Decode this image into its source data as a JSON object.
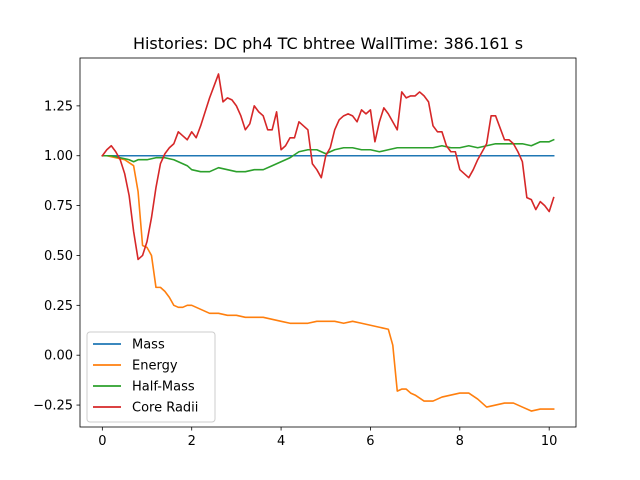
{
  "chart_data": {
    "type": "line",
    "title": "Histories: DC ph4 TC bhtree WallTime: 386.161 s",
    "xlabel": "",
    "ylabel": "",
    "xlim": [
      -0.5,
      10.6
    ],
    "ylim": [
      -0.36,
      1.49
    ],
    "xticks": [
      0,
      2,
      4,
      6,
      8,
      10
    ],
    "xtick_labels": [
      "0",
      "2",
      "4",
      "6",
      "8",
      "10"
    ],
    "yticks": [
      -0.25,
      0.0,
      0.25,
      0.5,
      0.75,
      1.0,
      1.25
    ],
    "ytick_labels": [
      "−0.25",
      "0.00",
      "0.25",
      "0.50",
      "0.75",
      "1.00",
      "1.25"
    ],
    "grid": false,
    "legend_position": "lower-left",
    "series": [
      {
        "name": "Mass",
        "color": "#1f77b4",
        "x": [
          0,
          10.1
        ],
        "y": [
          1.0,
          1.0
        ]
      },
      {
        "name": "Energy",
        "color": "#ff7f0e",
        "x": [
          0,
          0.1,
          0.3,
          0.5,
          0.7,
          0.8,
          0.9,
          1.0,
          1.1,
          1.2,
          1.3,
          1.4,
          1.5,
          1.6,
          1.7,
          1.8,
          1.9,
          2.0,
          2.1,
          2.2,
          2.3,
          2.4,
          2.5,
          2.6,
          2.8,
          3.0,
          3.2,
          3.4,
          3.6,
          3.8,
          4.0,
          4.2,
          4.4,
          4.6,
          4.8,
          5.0,
          5.2,
          5.4,
          5.6,
          5.8,
          6.0,
          6.2,
          6.4,
          6.5,
          6.6,
          6.7,
          6.8,
          6.9,
          7.0,
          7.2,
          7.4,
          7.6,
          7.8,
          8.0,
          8.2,
          8.4,
          8.6,
          8.8,
          9.0,
          9.2,
          9.4,
          9.6,
          9.8,
          10.0,
          10.1
        ],
        "y": [
          1.0,
          1.0,
          0.99,
          0.98,
          0.95,
          0.82,
          0.55,
          0.54,
          0.5,
          0.34,
          0.34,
          0.32,
          0.29,
          0.25,
          0.24,
          0.24,
          0.25,
          0.25,
          0.24,
          0.23,
          0.22,
          0.21,
          0.21,
          0.21,
          0.2,
          0.2,
          0.19,
          0.19,
          0.19,
          0.18,
          0.17,
          0.16,
          0.16,
          0.16,
          0.17,
          0.17,
          0.17,
          0.16,
          0.17,
          0.16,
          0.15,
          0.14,
          0.13,
          0.05,
          -0.18,
          -0.17,
          -0.17,
          -0.19,
          -0.2,
          -0.23,
          -0.23,
          -0.21,
          -0.2,
          -0.19,
          -0.19,
          -0.22,
          -0.26,
          -0.25,
          -0.24,
          -0.24,
          -0.26,
          -0.28,
          -0.27,
          -0.27,
          -0.27
        ]
      },
      {
        "name": "Half-Mass",
        "color": "#2ca02c",
        "x": [
          0,
          0.2,
          0.4,
          0.6,
          0.7,
          0.8,
          0.9,
          1.0,
          1.2,
          1.4,
          1.6,
          1.7,
          1.8,
          1.9,
          2.0,
          2.2,
          2.4,
          2.5,
          2.6,
          2.8,
          3.0,
          3.2,
          3.4,
          3.6,
          3.8,
          4.0,
          4.2,
          4.4,
          4.6,
          4.8,
          5.0,
          5.2,
          5.4,
          5.6,
          5.8,
          6.0,
          6.2,
          6.4,
          6.6,
          6.8,
          7.0,
          7.2,
          7.4,
          7.6,
          7.8,
          8.0,
          8.2,
          8.4,
          8.6,
          8.8,
          9.0,
          9.2,
          9.4,
          9.6,
          9.8,
          10.0,
          10.1
        ],
        "y": [
          1.0,
          1.0,
          0.99,
          0.98,
          0.97,
          0.98,
          0.98,
          0.98,
          0.99,
          0.99,
          0.98,
          0.97,
          0.96,
          0.95,
          0.93,
          0.92,
          0.92,
          0.93,
          0.94,
          0.93,
          0.92,
          0.92,
          0.93,
          0.93,
          0.95,
          0.97,
          0.99,
          1.02,
          1.03,
          1.03,
          1.01,
          1.03,
          1.04,
          1.04,
          1.03,
          1.03,
          1.02,
          1.03,
          1.04,
          1.04,
          1.04,
          1.04,
          1.04,
          1.05,
          1.04,
          1.04,
          1.05,
          1.04,
          1.05,
          1.06,
          1.06,
          1.06,
          1.06,
          1.05,
          1.07,
          1.07,
          1.08
        ]
      },
      {
        "name": "Core Radii",
        "color": "#d62728",
        "x": [
          0,
          0.1,
          0.2,
          0.3,
          0.4,
          0.5,
          0.6,
          0.7,
          0.8,
          0.9,
          1.0,
          1.1,
          1.2,
          1.3,
          1.4,
          1.5,
          1.6,
          1.7,
          1.8,
          1.9,
          2.0,
          2.1,
          2.2,
          2.3,
          2.4,
          2.5,
          2.6,
          2.7,
          2.8,
          2.9,
          3.0,
          3.1,
          3.2,
          3.3,
          3.4,
          3.5,
          3.6,
          3.7,
          3.8,
          3.9,
          4.0,
          4.1,
          4.2,
          4.3,
          4.4,
          4.5,
          4.6,
          4.7,
          4.8,
          4.9,
          5.0,
          5.1,
          5.2,
          5.3,
          5.4,
          5.5,
          5.6,
          5.7,
          5.8,
          5.9,
          6.0,
          6.1,
          6.2,
          6.3,
          6.4,
          6.5,
          6.6,
          6.7,
          6.8,
          6.9,
          7.0,
          7.1,
          7.2,
          7.3,
          7.4,
          7.5,
          7.6,
          7.7,
          7.8,
          7.9,
          8.0,
          8.1,
          8.2,
          8.3,
          8.4,
          8.5,
          8.6,
          8.7,
          8.8,
          8.9,
          9.0,
          9.1,
          9.2,
          9.3,
          9.4,
          9.5,
          9.6,
          9.7,
          9.8,
          9.9,
          10.0,
          10.1
        ],
        "y": [
          1.0,
          1.03,
          1.05,
          1.02,
          0.98,
          0.91,
          0.8,
          0.62,
          0.48,
          0.5,
          0.57,
          0.69,
          0.84,
          0.96,
          1.01,
          1.04,
          1.06,
          1.12,
          1.1,
          1.08,
          1.12,
          1.09,
          1.15,
          1.22,
          1.29,
          1.35,
          1.41,
          1.27,
          1.29,
          1.28,
          1.25,
          1.2,
          1.13,
          1.16,
          1.25,
          1.22,
          1.2,
          1.13,
          1.13,
          1.22,
          1.03,
          1.05,
          1.09,
          1.09,
          1.17,
          1.15,
          1.13,
          0.96,
          0.93,
          0.89,
          1.0,
          1.04,
          1.13,
          1.18,
          1.2,
          1.21,
          1.2,
          1.17,
          1.23,
          1.21,
          1.23,
          1.07,
          1.17,
          1.24,
          1.21,
          1.17,
          1.13,
          1.32,
          1.29,
          1.3,
          1.3,
          1.32,
          1.3,
          1.27,
          1.15,
          1.12,
          1.12,
          1.05,
          1.02,
          1.02,
          0.93,
          0.91,
          0.89,
          0.93,
          0.98,
          1.02,
          1.06,
          1.2,
          1.2,
          1.14,
          1.08,
          1.08,
          1.06,
          1.02,
          0.97,
          0.79,
          0.78,
          0.73,
          0.77,
          0.75,
          0.72,
          0.79
        ]
      }
    ]
  }
}
